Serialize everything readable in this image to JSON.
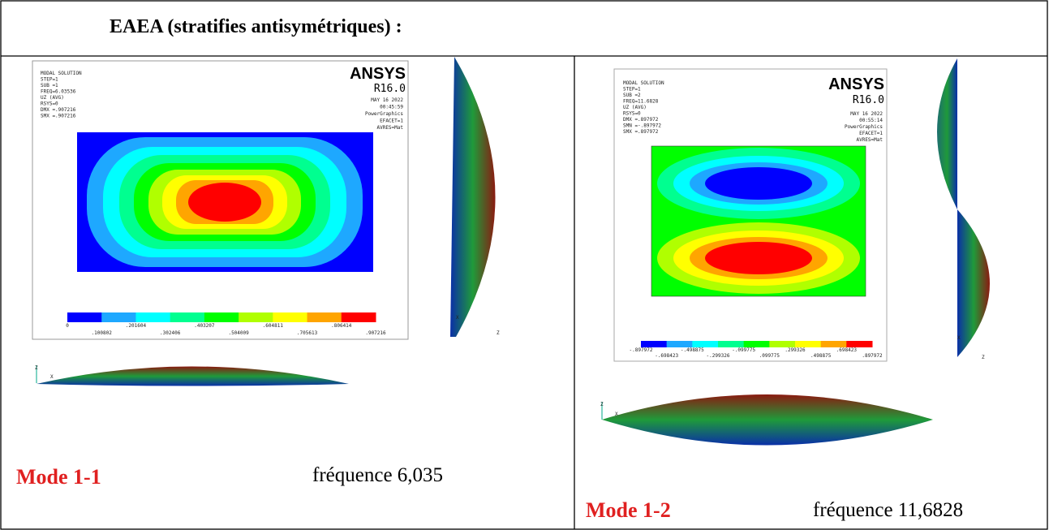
{
  "header": {
    "title": "EAEA (stratifies antisymétriques) :"
  },
  "cells": [
    {
      "mode": "Mode 1-1",
      "frequency": "fréquence 6,035",
      "ansys": {
        "brand": "ANSYS",
        "version": "R16.0",
        "info": [
          "MODAL SOLUTION",
          "STEP=1",
          "SUB =1",
          "FREQ=6.03536",
          "UZ (AVG)",
          "RSYS=0",
          "DMX =.907216",
          "SMX =.907216"
        ],
        "stamp": [
          "MAY 16 2022",
          "00:45:59",
          "PowerGraphics",
          "EFACET=1",
          "AVRES=Mat"
        ],
        "legend": [
          "0",
          ".100802",
          ".201604",
          ".302406",
          ".403207",
          ".504009",
          ".604811",
          ".705613",
          ".806414",
          ".907216"
        ]
      },
      "axis_labels": [
        "X",
        "Z",
        "X",
        "Z"
      ]
    },
    {
      "mode": "Mode 1-2",
      "frequency": "fréquence 11,6828",
      "ansys": {
        "brand": "ANSYS",
        "version": "R16.0",
        "info": [
          "MODAL SOLUTION",
          "STEP=1",
          "SUB =2",
          "FREQ=11.6828",
          "UZ (AVG)",
          "RSYS=0",
          "DMX =.897972",
          "SMN =-.897972",
          "SMX =.897972"
        ],
        "stamp": [
          "MAY 16 2022",
          "00:55:14",
          "PowerGraphics",
          "EFACET=1",
          "AVRES=Mat"
        ],
        "legend": [
          "-.897972",
          "-.698423",
          "-.498875",
          "-.299326",
          "-.099775",
          ".099775",
          ".299326",
          ".498875",
          ".698423",
          ".897972"
        ]
      },
      "axis_labels": [
        "X",
        "Z",
        "X",
        "Z"
      ]
    }
  ]
}
